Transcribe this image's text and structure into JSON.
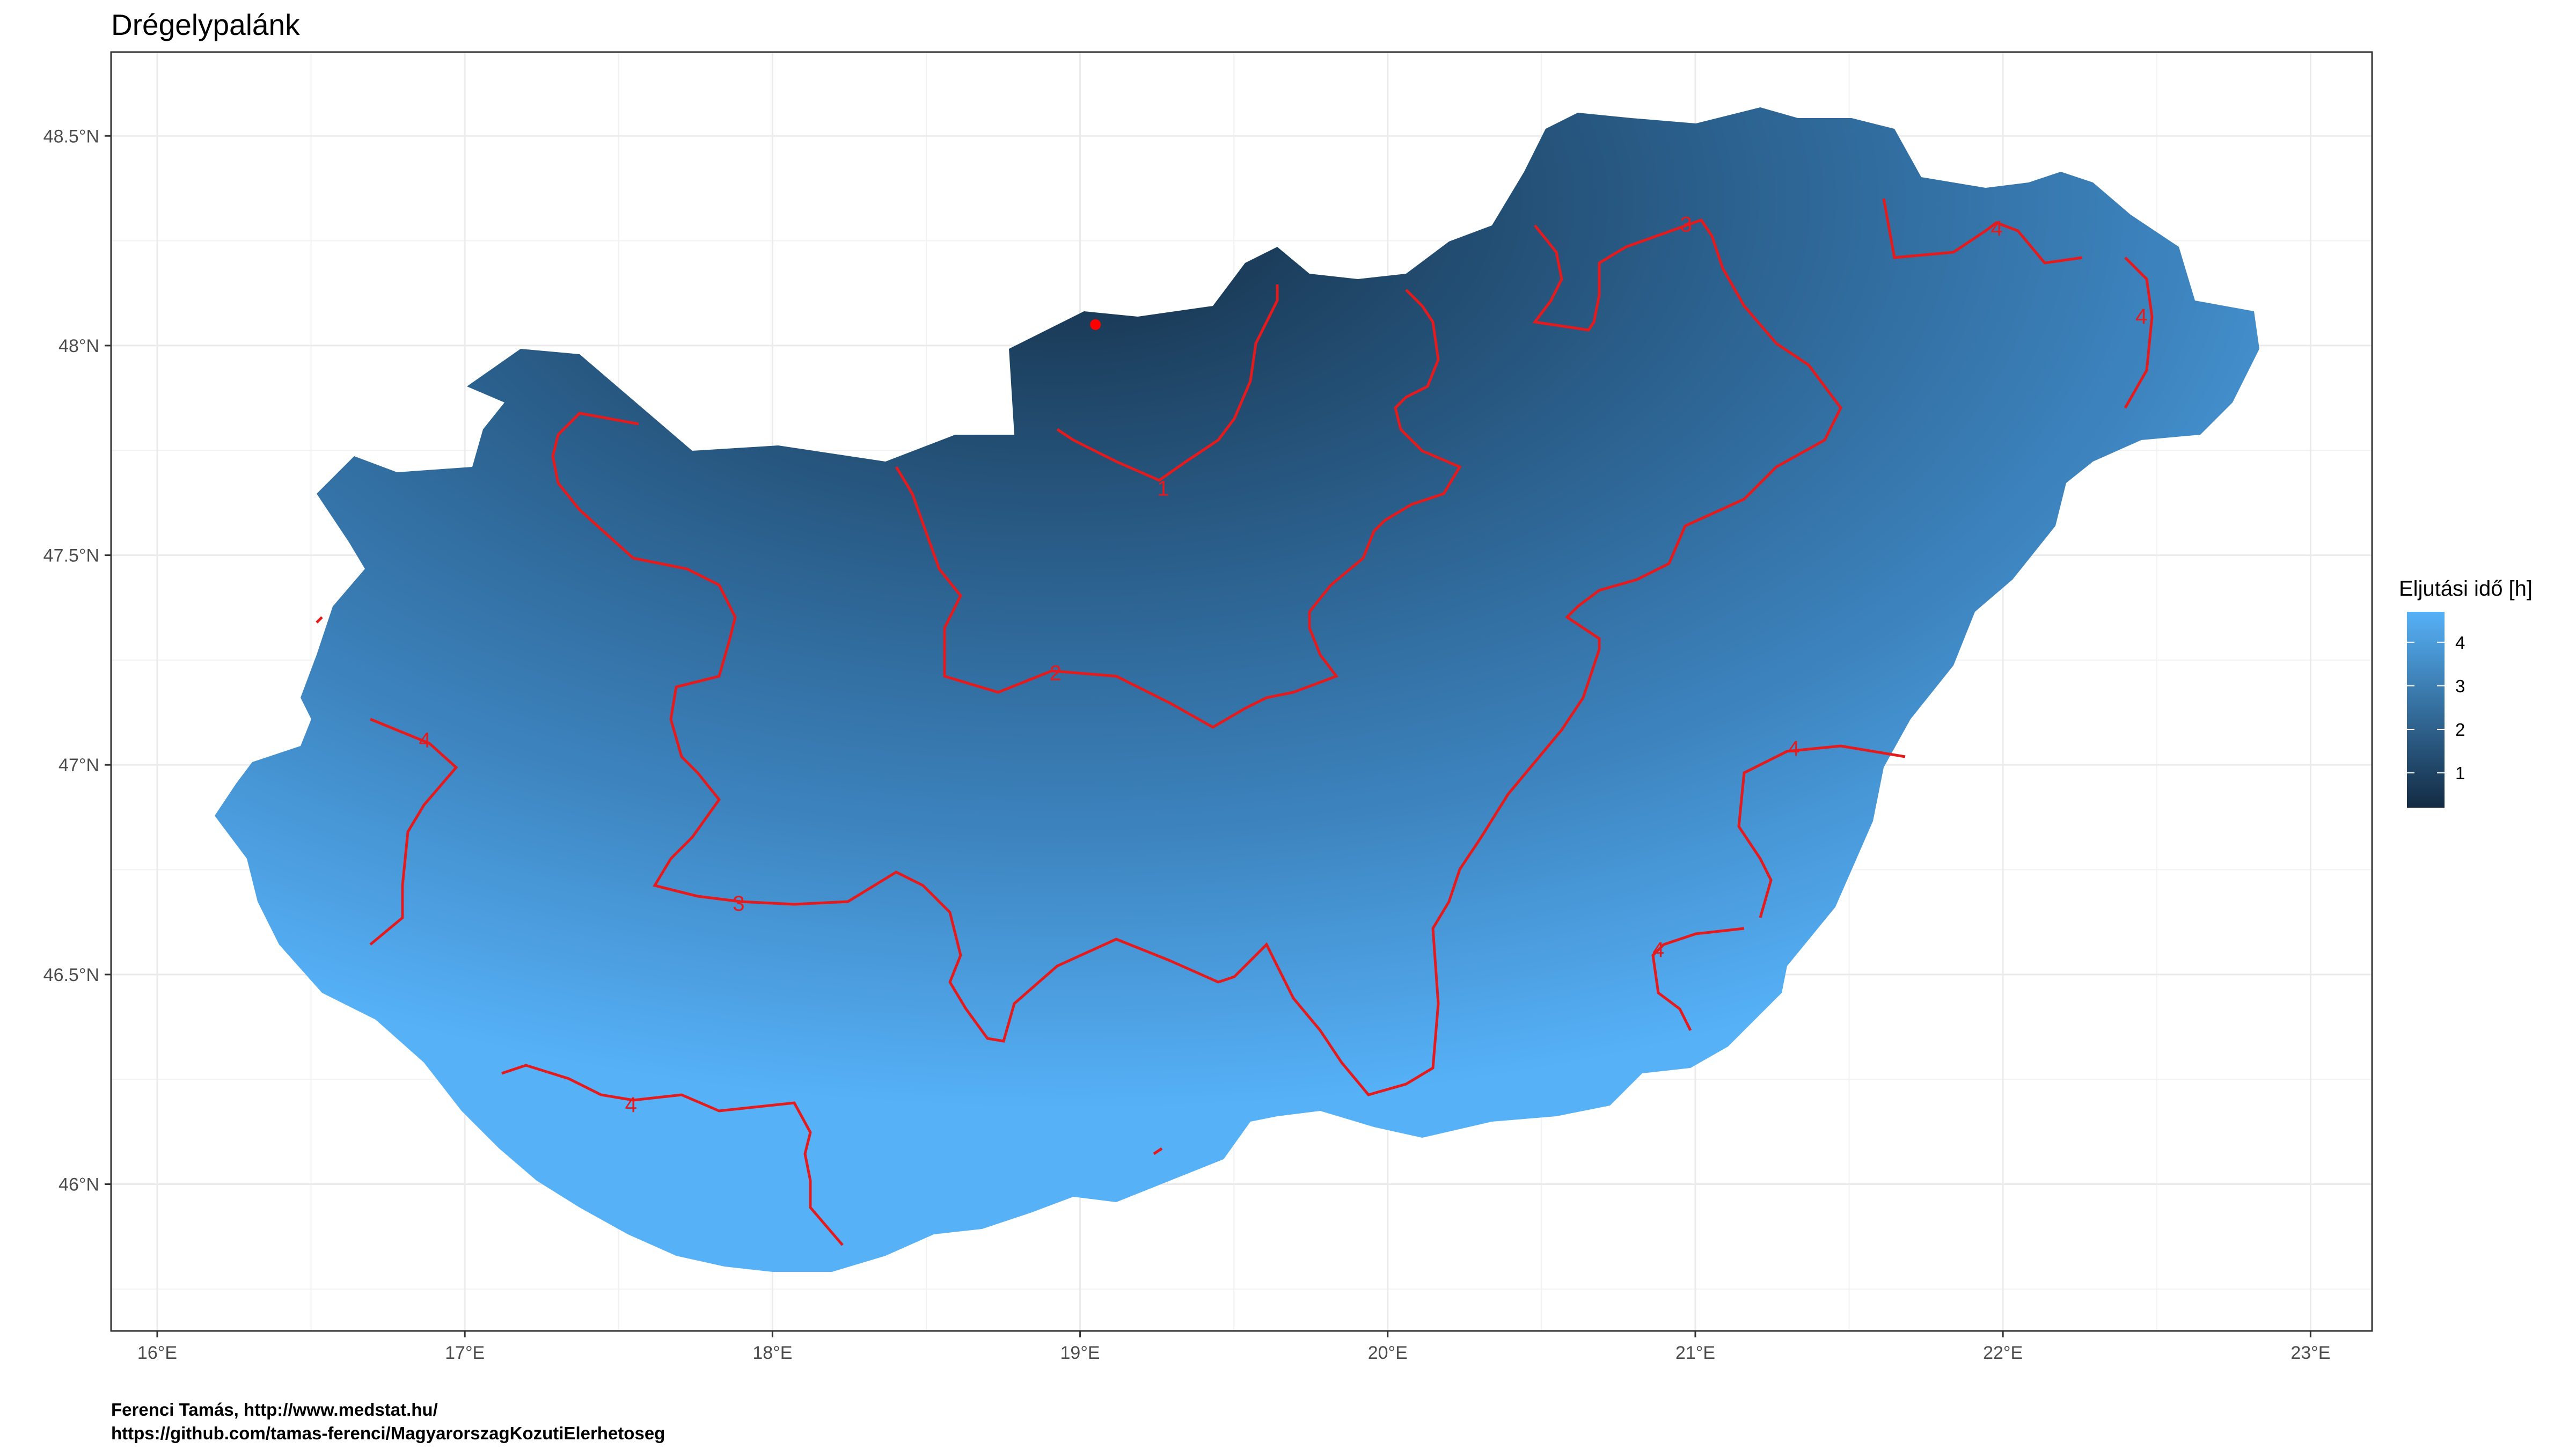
{
  "title": "Drégelypalánk",
  "caption": {
    "line1": "Ferenci Tamás, http://www.medstat.hu/",
    "line2": "https://github.com/tamas-ferenci/MagyarorszagKozutiElerhetoseg"
  },
  "map": {
    "x_axis_ticks": [
      "16°E",
      "17°E",
      "18°E",
      "19°E",
      "20°E",
      "21°E",
      "22°E",
      "23°E"
    ],
    "y_axis_ticks": [
      "48.5°N",
      "48°N",
      "47.5°N",
      "47°N",
      "46.5°N",
      "46°N"
    ],
    "lon_range": [
      15.85,
      23.2
    ],
    "lat_range": [
      45.65,
      48.7
    ],
    "grid": true,
    "origin_marker": {
      "name": "Drégelypalánk",
      "lon": 19.05,
      "lat": 48.05,
      "color": "#ff0000"
    },
    "contour_color": "#e41a1c",
    "contour_labels": [
      {
        "text": "1",
        "lon": 19.27,
        "lat": 47.66
      },
      {
        "text": "2",
        "lon": 18.92,
        "lat": 47.22
      },
      {
        "text": "3",
        "lon": 17.89,
        "lat": 46.67
      },
      {
        "text": "3",
        "lon": 20.97,
        "lat": 48.29
      },
      {
        "text": "4",
        "lon": 17.54,
        "lat": 46.19
      },
      {
        "text": "4",
        "lon": 16.87,
        "lat": 47.06
      },
      {
        "text": "4",
        "lon": 21.32,
        "lat": 47.04
      },
      {
        "text": "4",
        "lon": 20.88,
        "lat": 46.56
      },
      {
        "text": "4",
        "lon": 21.98,
        "lat": 48.28
      },
      {
        "text": "4",
        "lon": 22.45,
        "lat": 48.07
      }
    ]
  },
  "legend": {
    "title": "Eljutási idő [h]",
    "labels": [
      "4",
      "3",
      "2",
      "1"
    ],
    "range": [
      0.2,
      4.7
    ],
    "colors": {
      "low": "#132b43",
      "high": "#56b1f7"
    }
  }
}
